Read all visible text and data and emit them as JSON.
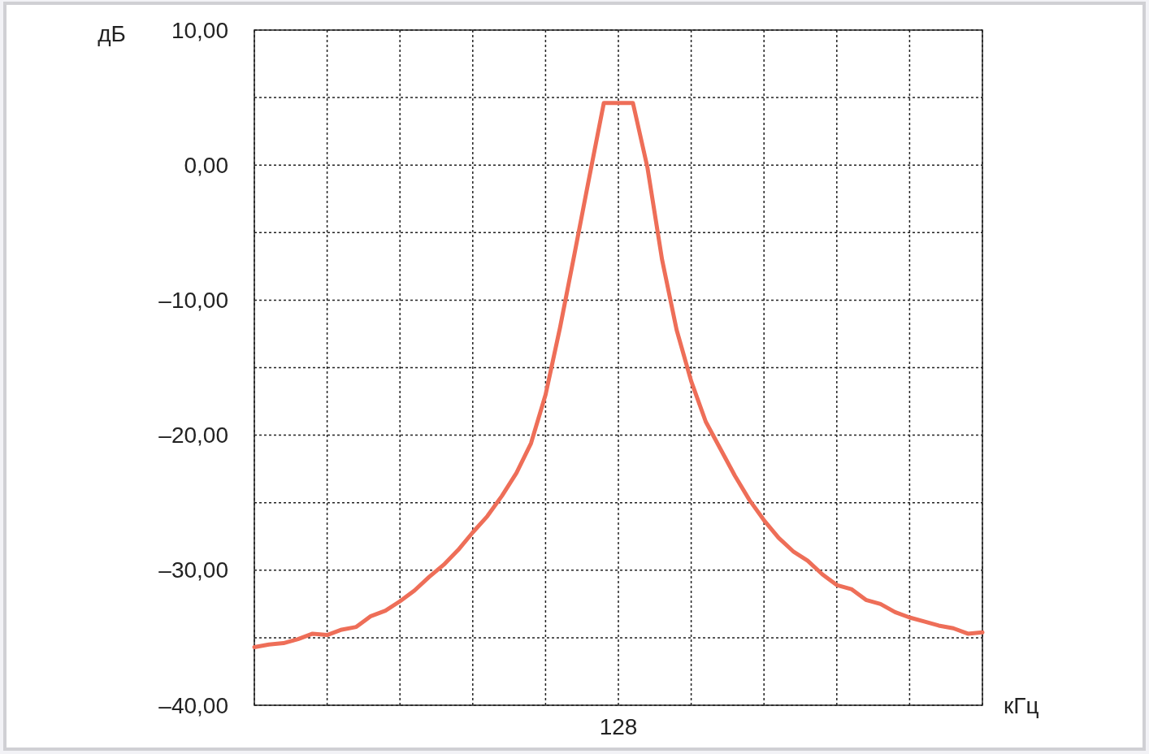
{
  "chart_data": {
    "type": "line",
    "xlabel": "кГц",
    "ylabel": "дБ",
    "categories": [
      null,
      null,
      null,
      null,
      null,
      null,
      null,
      null,
      null,
      null,
      null,
      null,
      null,
      null,
      null,
      null,
      null,
      null,
      null,
      null,
      null,
      null,
      null,
      null,
      null,
      "128",
      null,
      null,
      null,
      null,
      null,
      null,
      null,
      null,
      null,
      null,
      null,
      null,
      null,
      null,
      null,
      null,
      null,
      null,
      null,
      null,
      null,
      null,
      null,
      null,
      null
    ],
    "series": [
      {
        "color": "#ee6e58",
        "values": [
          -35.7,
          -35.5,
          -35.4,
          -35.1,
          -34.7,
          -34.8,
          -34.4,
          -34.2,
          -33.4,
          -33.0,
          -32.3,
          -31.5,
          -30.5,
          -29.6,
          -28.5,
          -27.2,
          -26.0,
          -24.5,
          -22.8,
          -20.6,
          -17.0,
          -12.0,
          -6.5,
          -0.9,
          4.6,
          4.6,
          4.6,
          -0.2,
          -7.0,
          -12.2,
          -16.0,
          -19.0,
          -21.0,
          -23.0,
          -24.8,
          -26.3,
          -27.6,
          -28.6,
          -29.3,
          -30.3,
          -31.1,
          -31.4,
          -32.2,
          -32.5,
          -33.1,
          -33.5,
          -33.8,
          -34.1,
          -34.3,
          -34.7,
          -34.6
        ]
      }
    ],
    "ylim": [
      -40,
      10
    ],
    "yticks": [
      {
        "value": -40,
        "label": "–40,00"
      },
      {
        "value": -35,
        "label": null
      },
      {
        "value": -30,
        "label": "–30,00"
      },
      {
        "value": -25,
        "label": null
      },
      {
        "value": -20,
        "label": "–20,00"
      },
      {
        "value": -15,
        "label": null
      },
      {
        "value": -10,
        "label": "–10,00"
      },
      {
        "value": -5,
        "label": null
      },
      {
        "value": 0,
        "label": "0,00"
      },
      {
        "value": 5,
        "label": null
      },
      {
        "value": 10,
        "label": "10,00"
      }
    ],
    "grid": true,
    "line_style": "solid",
    "marker": "none"
  }
}
